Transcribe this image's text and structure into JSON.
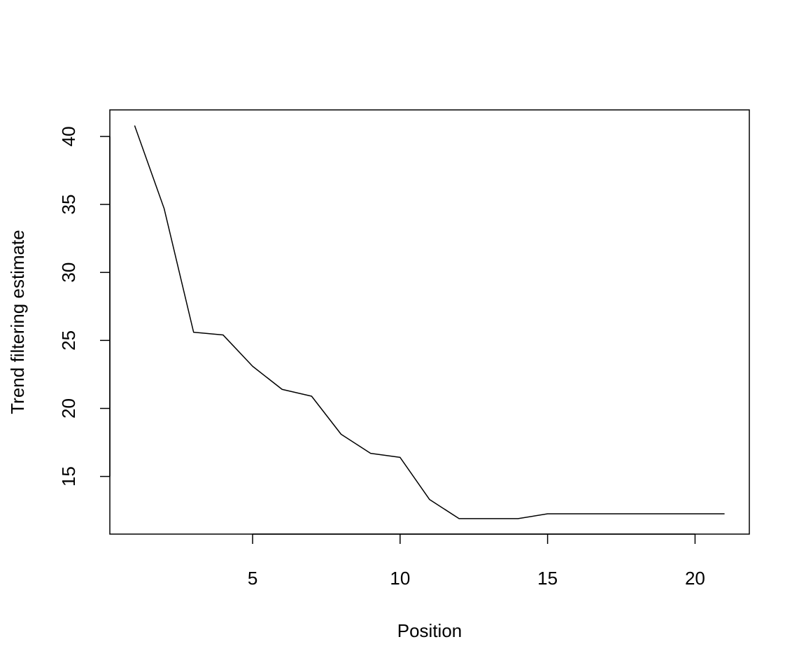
{
  "chart_data": {
    "type": "line",
    "title": "",
    "xlabel": "Position",
    "ylabel": "Trend filtering estimate",
    "x": [
      1,
      2,
      3,
      4,
      5,
      6,
      7,
      8,
      9,
      10,
      11,
      12,
      13,
      14,
      15,
      16,
      17,
      18,
      19,
      20,
      21
    ],
    "series": [
      {
        "values": [
          40.8,
          34.7,
          25.6,
          25.4,
          23.1,
          21.4,
          20.9,
          18.1,
          16.7,
          16.4,
          13.3,
          11.9,
          11.9,
          11.9,
          12.25,
          12.25,
          12.25,
          12.25,
          12.25,
          12.25,
          12.25
        ],
        "color": "#000000"
      }
    ],
    "xlim": [
      0.16,
      21.84
    ],
    "ylim": [
      10.76,
      41.95
    ],
    "xticks": [
      5,
      10,
      15,
      20
    ],
    "yticks": [
      15,
      20,
      25,
      30,
      35,
      40
    ],
    "grid": false,
    "legend": "none"
  }
}
